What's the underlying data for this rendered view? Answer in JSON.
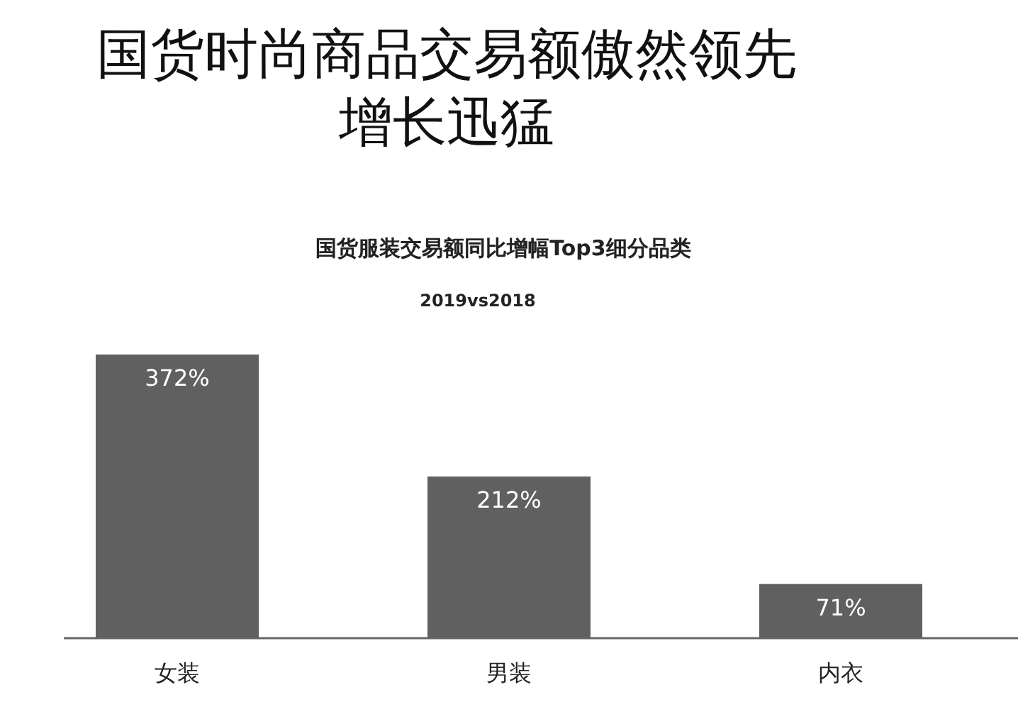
{
  "chart_data": {
    "type": "bar",
    "title": "国货时尚商品交易额傲然领先增长迅猛",
    "subtitle": "国货服装交易额同比增幅Top3细分品类",
    "annotations": [
      "2019vs2018"
    ],
    "categories": [
      "女装",
      "男装",
      "内衣"
    ],
    "values": [
      372,
      212,
      71
    ],
    "value_labels": [
      "372%",
      "212%",
      "71%"
    ],
    "color": "#606060"
  }
}
